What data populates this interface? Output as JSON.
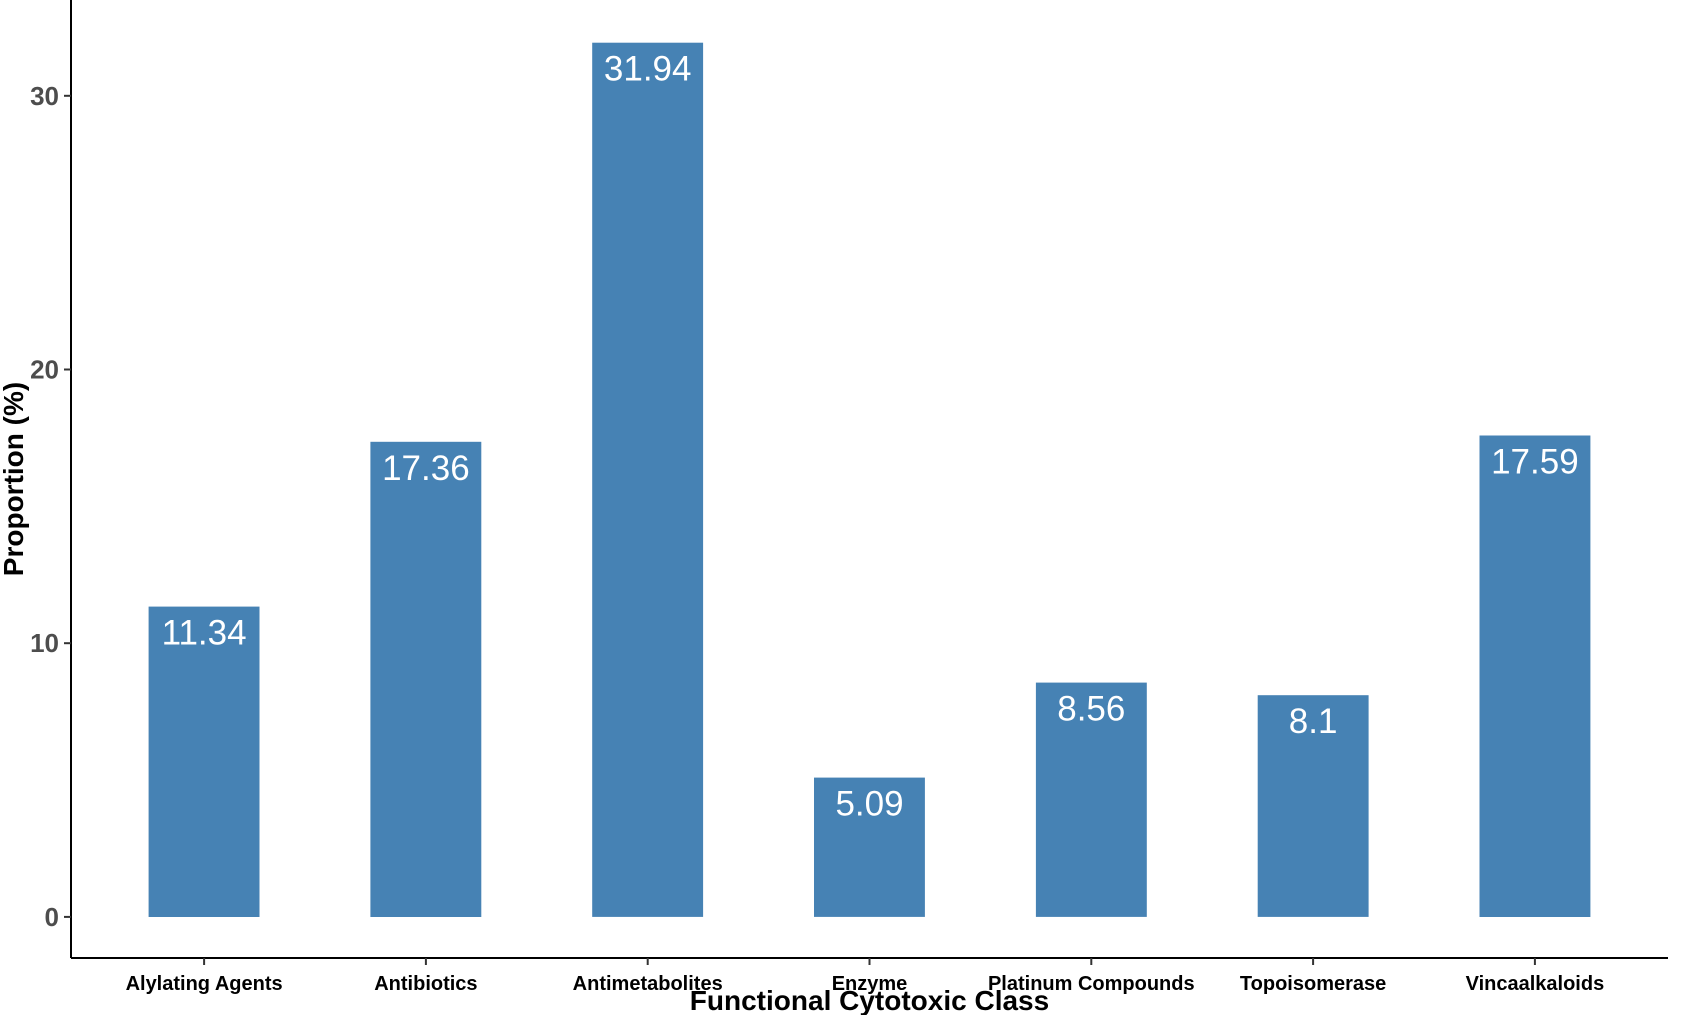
{
  "chart_data": {
    "type": "bar",
    "title": "",
    "xlabel": "Functional Cytotoxic Class",
    "ylabel": "Proportion (%)",
    "categories": [
      "Alylating Agents",
      "Antibiotics",
      "Antimetabolites",
      "Enzyme",
      "Platinum Compounds",
      "Topoisomerase",
      "Vincaalkaloids"
    ],
    "values": [
      11.34,
      17.36,
      31.94,
      5.09,
      8.56,
      8.1,
      17.59
    ],
    "value_labels": [
      "11.34",
      "17.36",
      "31.94",
      "5.09",
      "8.56",
      "8.1",
      "17.59"
    ],
    "y_ticks": [
      0,
      10,
      20,
      30
    ],
    "y_tick_labels": [
      "0",
      "10",
      "20",
      "30"
    ],
    "ylim": [
      -1.5,
      33.5
    ],
    "grid": false,
    "legend": "none",
    "colors": {
      "bar": "#4682b4",
      "bar_label": "#ffffff",
      "axis": "#000000",
      "tick_label": "#4d4d4d"
    }
  }
}
